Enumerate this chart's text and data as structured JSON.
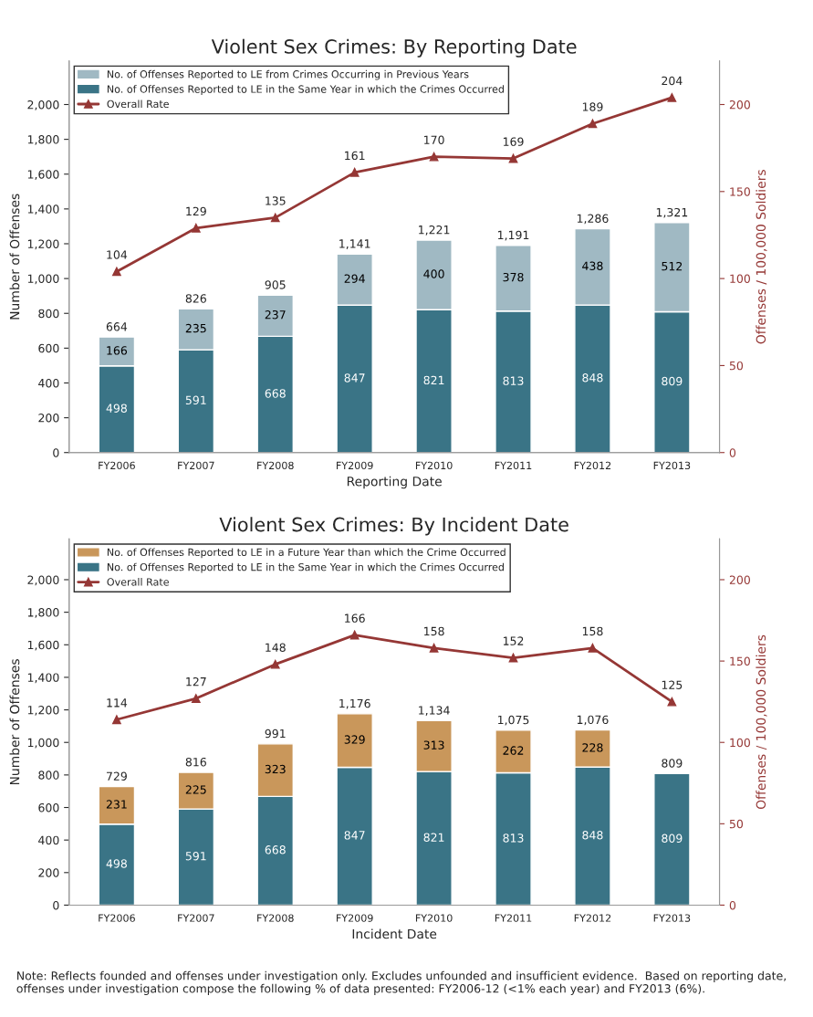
{
  "chart_data": [
    {
      "type": "bar",
      "title": "Violent Sex Crimes: By Reporting Date",
      "xlabel": "Reporting Date",
      "ylabel": "Number of Offenses",
      "y2label": "Offenses / 100,000 Soldiers",
      "categories": [
        "FY2006",
        "FY2007",
        "FY2008",
        "FY2009",
        "FY2010",
        "FY2011",
        "FY2012",
        "FY2013"
      ],
      "stacked": true,
      "data_labels": true,
      "legend": "top left",
      "grid": false,
      "marker": "triangle",
      "ylim": [
        0,
        2250
      ],
      "yticks": [
        0,
        {
          "value": 200,
          "label": "200"
        },
        {
          "value": 400,
          "label": "400"
        },
        {
          "value": 600,
          "label": "600"
        },
        {
          "value": 800,
          "label": "800"
        },
        {
          "value": 1000,
          "label": "1,000"
        },
        {
          "value": 1200,
          "label": "1,200"
        },
        {
          "value": 1400,
          "label": "1,400"
        },
        {
          "value": 1600,
          "label": "1,600"
        },
        {
          "value": 1800,
          "label": "1,800"
        },
        {
          "value": 2000,
          "label": "2,000"
        }
      ],
      "y2lim": [
        0,
        225
      ],
      "y2ticks": [
        0,
        50,
        100,
        150,
        200
      ],
      "totals": [
        "664",
        "826",
        "905",
        "1,141",
        "1,221",
        "1,191",
        "1,286",
        "1,321"
      ],
      "series": [
        {
          "name": "No. of Offenses Reported to LE in the Same Year in which the Crimes Occurred",
          "color": "#3a7486",
          "values": [
            498,
            591,
            668,
            847,
            821,
            813,
            848,
            809
          ]
        },
        {
          "name": "No. of Offenses Reported to LE from Crimes Occurring in Previous Years",
          "color": "#a0b9c3",
          "values": [
            166,
            235,
            237,
            294,
            400,
            378,
            438,
            512
          ]
        },
        {
          "name": "Overall Rate",
          "type": "line",
          "axis": "y2",
          "color": "#953735",
          "values": [
            104,
            129,
            135,
            161,
            170,
            169,
            189,
            204
          ]
        }
      ]
    },
    {
      "type": "bar",
      "title": "Violent Sex Crimes: By Incident Date",
      "xlabel": "Incident Date",
      "ylabel": "Number of Offenses",
      "y2label": "Offenses / 100,000 Soldiers",
      "categories": [
        "FY2006",
        "FY2007",
        "FY2008",
        "FY2009",
        "FY2010",
        "FY2011",
        "FY2012",
        "FY2013"
      ],
      "stacked": true,
      "data_labels": true,
      "legend": "top left",
      "grid": false,
      "marker": "triangle",
      "ylim": [
        0,
        2250
      ],
      "yticks": [
        0,
        {
          "value": 200,
          "label": "200"
        },
        {
          "value": 400,
          "label": "400"
        },
        {
          "value": 600,
          "label": "600"
        },
        {
          "value": 800,
          "label": "800"
        },
        {
          "value": 1000,
          "label": "1,000"
        },
        {
          "value": 1200,
          "label": "1,200"
        },
        {
          "value": 1400,
          "label": "1,400"
        },
        {
          "value": 1600,
          "label": "1,600"
        },
        {
          "value": 1800,
          "label": "1,800"
        },
        {
          "value": 2000,
          "label": "2,000"
        }
      ],
      "y2lim": [
        0,
        225
      ],
      "y2ticks": [
        0,
        50,
        100,
        150,
        200
      ],
      "totals": [
        "729",
        "816",
        "991",
        "1,176",
        "1,134",
        "1,075",
        "1,076",
        "809"
      ],
      "series": [
        {
          "name": "No. of Offenses Reported to LE in the Same Year in which the Crimes Occurred",
          "color": "#3a7486",
          "values": [
            498,
            591,
            668,
            847,
            821,
            813,
            848,
            809
          ]
        },
        {
          "name": "No. of Offenses Reported to LE in a Future Year than which the Crime Occurred",
          "color": "#c9975b",
          "values": [
            231,
            225,
            323,
            329,
            313,
            262,
            228,
            null
          ]
        },
        {
          "name": "Overall Rate",
          "type": "line",
          "axis": "y2",
          "color": "#953735",
          "values": [
            114,
            127,
            148,
            166,
            158,
            152,
            158,
            125
          ]
        }
      ],
      "annotations": [
        "Note: Reflects founded and offenses under investigation only. Excludes unfounded and insufficient evidence.  Based on reporting date, offenses under investigation compose the following % of data presented: FY2006-12 (<1% each year) and FY2013 (6%)."
      ]
    }
  ]
}
